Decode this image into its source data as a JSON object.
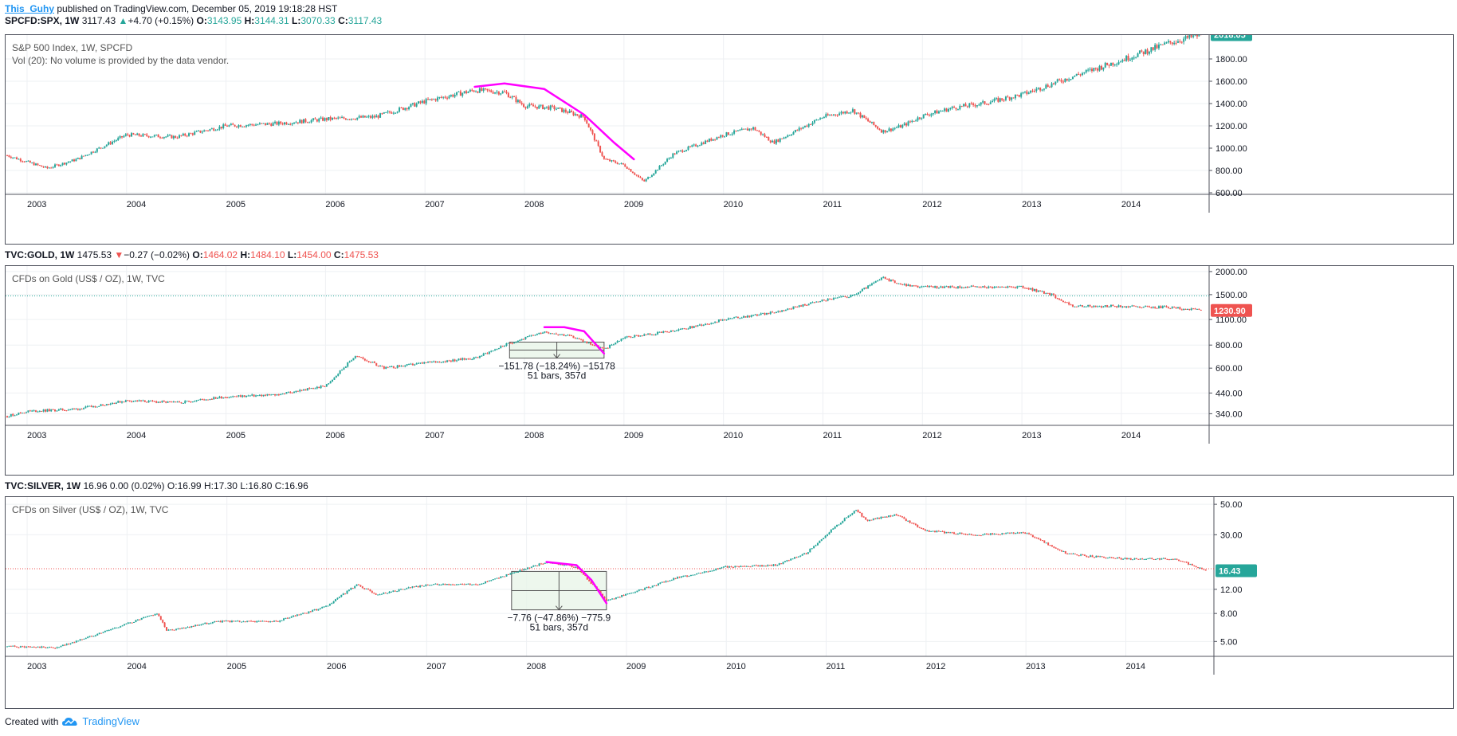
{
  "header": {
    "author": "This_Guhy",
    "published_text": "published on TradingView.com, December 05, 2019 19:18:28 HST"
  },
  "footer": {
    "created_with": "Created with",
    "brand": "TradingView",
    "brand_icon": "tradingview-cloud-icon"
  },
  "colors": {
    "up": "#26a69a",
    "down": "#ef5350",
    "drawing": "#ff00ff",
    "range_fill": "#e8f5e9"
  },
  "chart_data": [
    {
      "type": "candlestick",
      "quote": {
        "symbol": "SPCFD:SPX, 1W",
        "last": "3117.43",
        "change": "+4.70 (+0.15%)",
        "direction": "up",
        "O": "3143.95",
        "H": "3144.31",
        "L": "3070.33",
        "C": "3117.43"
      },
      "title": "S&P 500 Index, 1W, SPCFD",
      "subtitle": "Vol (20): No volume is provided by the data vendor.",
      "x_ticks": [
        "2003",
        "2004",
        "2005",
        "2006",
        "2007",
        "2008",
        "2009",
        "2010",
        "2011",
        "2012",
        "2013",
        "2014"
      ],
      "y_ticks": [
        "600.00",
        "800.00",
        "1000.00",
        "1200.00",
        "1400.00",
        "1600.00",
        "1800.00"
      ],
      "ylim": [
        600,
        2000
      ],
      "scale": "linear",
      "last_price_label": "2018.05",
      "last_price_color": "#26a69a",
      "series": [
        {
          "x": [
            2002.8,
            2003.2,
            2003.5,
            2004.0,
            2004.5,
            2005.0,
            2005.5,
            2006.0,
            2006.5,
            2007.0,
            2007.5,
            2007.8,
            2008.0,
            2008.3,
            2008.6,
            2008.8,
            2009.0,
            2009.2,
            2009.5,
            2010.0,
            2010.3,
            2010.5,
            2011.0,
            2011.3,
            2011.6,
            2011.8,
            2012.0,
            2012.3,
            2012.6,
            2013.0,
            2013.5,
            2014.0,
            2014.5,
            2014.8
          ],
          "values": [
            935,
            820,
            900,
            1120,
            1100,
            1200,
            1220,
            1260,
            1280,
            1420,
            1520,
            1500,
            1380,
            1360,
            1280,
            900,
            850,
            700,
            950,
            1120,
            1180,
            1050,
            1280,
            1340,
            1150,
            1200,
            1290,
            1360,
            1400,
            1480,
            1640,
            1790,
            1950,
            2018
          ]
        }
      ],
      "drawings": [
        {
          "kind": "arc",
          "x": [
            2007.5,
            2007.8,
            2008.2,
            2008.6,
            2008.9,
            2009.1
          ],
          "values": [
            1550,
            1580,
            1530,
            1300,
            1050,
            900
          ]
        }
      ]
    },
    {
      "type": "candlestick",
      "quote": {
        "symbol": "TVC:GOLD, 1W",
        "last": "1475.53",
        "change": "−0.27 (−0.02%)",
        "direction": "down",
        "O": "1464.02",
        "H": "1484.10",
        "L": "1454.00",
        "C": "1475.53"
      },
      "title": "CFDs on Gold (US$ / OZ), 1W, TVC",
      "x_ticks": [
        "2003",
        "2004",
        "2005",
        "2006",
        "2007",
        "2008",
        "2009",
        "2010",
        "2011",
        "2012",
        "2013",
        "2014"
      ],
      "y_ticks": [
        "340.00",
        "440.00",
        "600.00",
        "800.00",
        "1100.00",
        "1500.00",
        "2000.00"
      ],
      "ylim": [
        300,
        2100
      ],
      "scale": "log",
      "last_price_label": "1230.90",
      "last_price_color": "#ef5350",
      "hline": 1475.53,
      "series": [
        {
          "x": [
            2002.8,
            2003.0,
            2003.5,
            2004.0,
            2004.5,
            2005.0,
            2005.5,
            2006.0,
            2006.3,
            2006.6,
            2007.0,
            2007.5,
            2007.8,
            2008.2,
            2008.5,
            2008.8,
            2009.0,
            2009.5,
            2010.0,
            2010.5,
            2011.0,
            2011.3,
            2011.6,
            2011.8,
            2012.0,
            2012.5,
            2013.0,
            2013.3,
            2013.5,
            2014.0,
            2014.5,
            2014.8
          ],
          "values": [
            330,
            350,
            360,
            400,
            390,
            420,
            430,
            480,
            700,
            600,
            640,
            680,
            800,
            950,
            880,
            760,
            880,
            950,
            1100,
            1200,
            1400,
            1480,
            1850,
            1700,
            1650,
            1650,
            1650,
            1500,
            1300,
            1300,
            1280,
            1231
          ]
        }
      ],
      "drawings": [
        {
          "kind": "arc",
          "x": [
            2008.2,
            2008.4,
            2008.6,
            2008.8
          ],
          "values": [
            1000,
            1000,
            950,
            720
          ]
        }
      ],
      "measure": {
        "x": [
          2007.85,
          2008.8
        ],
        "values": [
          830,
          680
        ],
        "label": "−151.78 (−18.24%) −15178",
        "bars": "51 bars, 357d"
      }
    },
    {
      "type": "candlestick",
      "quote": {
        "symbol": "TVC:SILVER, 1W",
        "last": "16.96",
        "change": "0.00 (0.02%)",
        "direction": "neutral",
        "O": "16.99",
        "H": "17.30",
        "L": "16.80",
        "C": "16.96"
      },
      "title": "CFDs on Silver (US$ / OZ), 1W, TVC",
      "x_ticks": [
        "2003",
        "2004",
        "2005",
        "2006",
        "2007",
        "2008",
        "2009",
        "2010",
        "2011",
        "2012",
        "2013",
        "2014"
      ],
      "y_ticks": [
        "5.00",
        "8.00",
        "12.00",
        "30.00",
        "50.00"
      ],
      "ylim": [
        4,
        55
      ],
      "scale": "log",
      "last_price_label": "16.43",
      "last_price_color": "#26a69a",
      "hline": 16.96,
      "series": [
        {
          "x": [
            2002.8,
            2003.3,
            2003.8,
            2004.3,
            2004.4,
            2004.9,
            2005.5,
            2006.0,
            2006.3,
            2006.5,
            2007.0,
            2007.5,
            2008.2,
            2008.5,
            2008.8,
            2009.0,
            2009.5,
            2010.0,
            2010.5,
            2010.8,
            2011.0,
            2011.3,
            2011.4,
            2011.7,
            2012.0,
            2012.5,
            2013.0,
            2013.4,
            2013.6,
            2014.0,
            2014.5,
            2014.8
          ],
          "values": [
            4.6,
            4.5,
            6.0,
            8.0,
            6.0,
            7.0,
            7.0,
            9.0,
            13.0,
            11.0,
            13.0,
            13.0,
            19.0,
            17.5,
            10.0,
            11.0,
            14.5,
            17.5,
            18.0,
            22.0,
            30.0,
            46.0,
            38.0,
            42.0,
            32.0,
            30.0,
            31.0,
            22.0,
            21.0,
            20.0,
            20.0,
            16.4
          ]
        }
      ],
      "drawings": [
        {
          "kind": "arc",
          "x": [
            2008.2,
            2008.5,
            2008.65,
            2008.8
          ],
          "values": [
            19.0,
            18.0,
            14.0,
            9.5
          ]
        }
      ],
      "measure": {
        "x": [
          2007.85,
          2008.8
        ],
        "values": [
          16.2,
          8.5
        ],
        "label": "−7.76 (−47.86%) −775.9",
        "bars": "51 bars, 357d"
      }
    }
  ]
}
